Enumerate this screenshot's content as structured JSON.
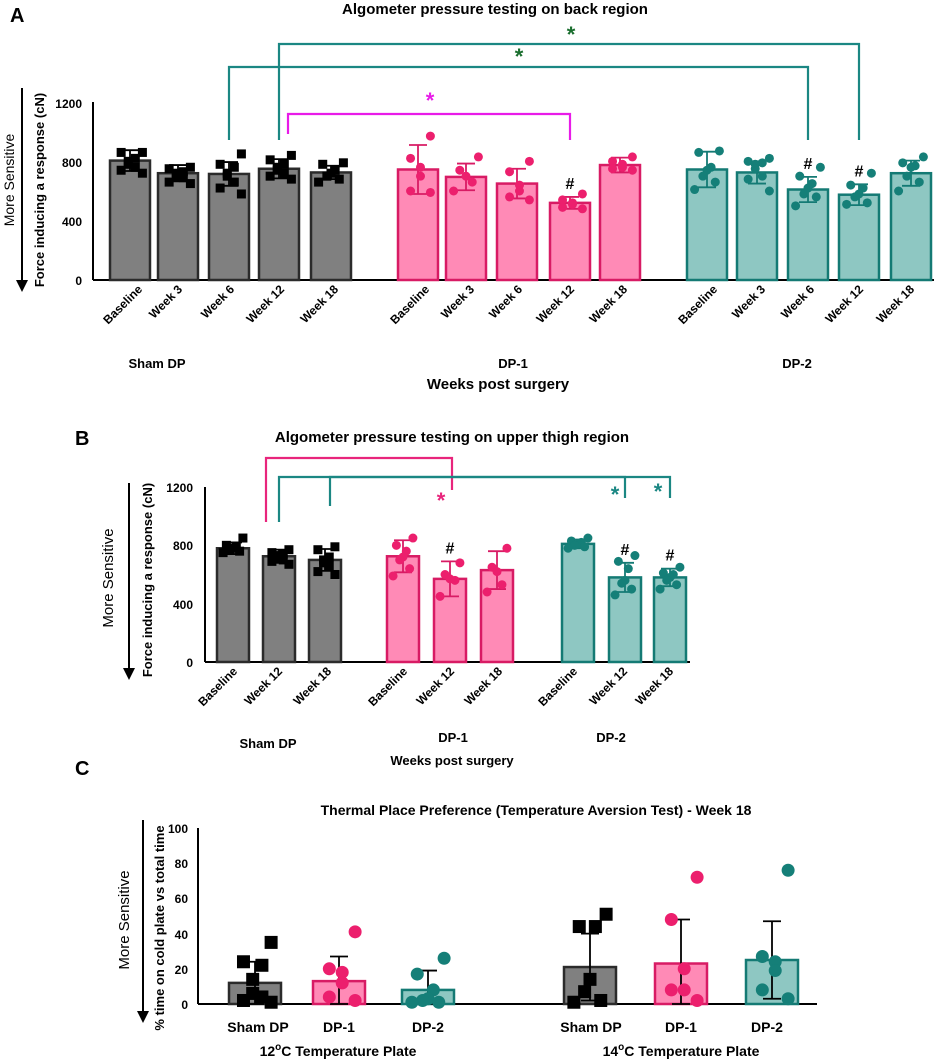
{
  "colors": {
    "sham_fill": "#808080",
    "sham_stroke": "#2b2b2b",
    "dp1_fill": "#ff8ab6",
    "dp1_stroke": "#d81b64",
    "dp1_point": "#ec1f6d",
    "dp2_fill": "#8ec7c2",
    "dp2_stroke": "#147a74",
    "dp2_point": "#157f78",
    "sig_magenta": "#e81be8",
    "sig_teal": "#1b8783",
    "sig_green": "#1a6e2e",
    "sig_pink": "#e8257c"
  },
  "chart_data": [
    {
      "panel": "A",
      "type": "bar",
      "title": "Algometer pressure testing on back region",
      "ylabel": "Force inducing a response (cN)",
      "side_label": "More Sensitive",
      "xlabel": "Weeks post surgery",
      "ylim": [
        0,
        1200
      ],
      "yticks": [
        "0",
        "400",
        "800",
        "1200"
      ],
      "groups": [
        {
          "name": "Sham DP",
          "categories": [
            "Baseline",
            "Week 3",
            "Week 6",
            "Week 12",
            "Week 18"
          ],
          "values": [
            805,
            720,
            715,
            750,
            725
          ],
          "sd": [
            70,
            55,
            80,
            65,
            45
          ],
          "points": [
            [
              860,
              860,
              820,
              800,
              780,
              760,
              740,
              720
            ],
            [
              760,
              750,
              730,
              720,
              700,
              690,
              660,
              650
            ],
            [
              850,
              780,
              760,
              720,
              700,
              660,
              620,
              580
            ],
            [
              840,
              810,
              780,
              760,
              740,
              720,
              700,
              680
            ],
            [
              790,
              780,
              740,
              720,
              700,
              680,
              660
            ]
          ]
        },
        {
          "name": "DP-1",
          "categories": [
            "Baseline",
            "Week 3",
            "Week 6",
            "Week 12",
            "Week 18"
          ],
          "values": [
            745,
            695,
            650,
            520,
            775
          ],
          "sd": [
            165,
            90,
            100,
            40,
            50
          ],
          "points": [
            [
              970,
              820,
              760,
              700,
              600,
              590
            ],
            [
              830,
              740,
              700,
              660,
              600
            ],
            [
              800,
              730,
              640,
              600,
              560,
              540
            ],
            [
              580,
              540,
              520,
              510,
              490,
              480
            ],
            [
              830,
              800,
              780,
              760,
              750,
              740
            ]
          ],
          "markers": [
            "",
            "",
            "",
            "#",
            ""
          ]
        },
        {
          "name": "DP-2",
          "categories": [
            "Baseline",
            "Week 3",
            "Week 6",
            "Week 12",
            "Week 18"
          ],
          "values": [
            745,
            725,
            610,
            575,
            720
          ],
          "sd": [
            120,
            75,
            85,
            70,
            85
          ],
          "points": [
            [
              870,
              860,
              760,
              740,
              700,
              660,
              610
            ],
            [
              820,
              800,
              790,
              780,
              750,
              700,
              680,
              600
            ],
            [
              760,
              700,
              650,
              620,
              580,
              560,
              500
            ],
            [
              720,
              640,
              620,
              580,
              560,
              520,
              510
            ],
            [
              830,
              790,
              770,
              760,
              700,
              660,
              600
            ]
          ],
          "markers": [
            "",
            "",
            "#",
            "#",
            ""
          ]
        }
      ],
      "significance": [
        {
          "from": "Sham DP / Week 12",
          "to": "DP-1 / Week 12",
          "label": "*",
          "color": "magenta"
        },
        {
          "from": "Sham DP / Week 6",
          "to": "DP-2 / Week 6",
          "label": "*",
          "color": "green"
        },
        {
          "from": "Sham DP / Week 12",
          "to": "DP-2 / Week 12",
          "label": "*",
          "color": "green"
        }
      ]
    },
    {
      "panel": "B",
      "type": "bar",
      "title": "Algometer pressure testing on upper thigh region",
      "ylabel": "Force inducing a response (cN)",
      "side_label": "More Sensitive",
      "xlabel": "Weeks post surgery",
      "ylim": [
        0,
        1200
      ],
      "yticks": [
        "0",
        "400",
        "800",
        "1200"
      ],
      "groups": [
        {
          "name": "Sham DP",
          "categories": [
            "Baseline",
            "Week 12",
            "Week 18"
          ],
          "values": [
            780,
            725,
            700
          ],
          "sd": [
            40,
            45,
            75
          ],
          "points": [
            [
              850,
              800,
              790,
              780,
              770,
              760,
              750
            ],
            [
              770,
              750,
              740,
              730,
              710,
              700,
              690,
              670
            ],
            [
              790,
              770,
              720,
              700,
              680,
              660,
              620,
              600
            ]
          ]
        },
        {
          "name": "DP-1",
          "categories": [
            "Baseline",
            "Week 12",
            "Week 18"
          ],
          "values": [
            725,
            570,
            630
          ],
          "sd": [
            110,
            120,
            130
          ],
          "points": [
            [
              850,
              800,
              760,
              720,
              700,
              640,
              590
            ],
            [
              680,
              600,
              570,
              560,
              450
            ],
            [
              780,
              650,
              620,
              530,
              480
            ]
          ],
          "markers": [
            "",
            "#",
            ""
          ]
        },
        {
          "name": "DP-2",
          "categories": [
            "Baseline",
            "Week 12",
            "Week 18"
          ],
          "values": [
            810,
            580,
            580
          ],
          "sd": [
            30,
            100,
            60
          ],
          "points": [
            [
              850,
              830,
              820,
              810,
              800,
              790,
              780
            ],
            [
              730,
              690,
              640,
              560,
              540,
              500,
              460
            ],
            [
              650,
              610,
              600,
              580,
              560,
              530,
              500
            ]
          ],
          "markers": [
            "",
            "#",
            "#"
          ]
        }
      ],
      "significance": [
        {
          "from": "Sham DP / Week 12",
          "to": "DP-1 / Week 12",
          "label": "*",
          "color": "pink"
        },
        {
          "from": "Sham DP / Week 12",
          "to": "DP-2 / Week 12",
          "label": "*",
          "color": "teal"
        },
        {
          "from": "Sham DP / Week 18",
          "to": "DP-2 / Week 18",
          "label": "*",
          "color": "teal"
        }
      ]
    },
    {
      "panel": "C",
      "type": "bar",
      "title": "Thermal Place Preference (Temperature Aversion Test)  - Week 18",
      "ylabel": "% time on cold plate vs total time",
      "side_label": "More Sensitive",
      "ylim": [
        0,
        100
      ],
      "yticks": [
        "0",
        "20",
        "40",
        "60",
        "80",
        "100"
      ],
      "groups": [
        {
          "name": "12ºC Temperature Plate",
          "categories": [
            "Sham DP",
            "DP-1",
            "DP-2"
          ],
          "values": [
            12,
            13,
            8
          ],
          "sd": [
            12,
            14,
            11
          ],
          "points": [
            [
              35,
              24,
              22,
              14,
              6,
              4,
              2,
              1
            ],
            [
              41,
              20,
              18,
              12,
              4,
              2
            ],
            [
              26,
              17,
              8,
              3,
              2,
              1,
              1
            ]
          ]
        },
        {
          "name": "14ºC Temperature Plate",
          "categories": [
            "Sham DP",
            "DP-1",
            "DP-2"
          ],
          "values": [
            21,
            23,
            25
          ],
          "sd": [
            19,
            25,
            22
          ],
          "points": [
            [
              51,
              44,
              44,
              14,
              7,
              2,
              1
            ],
            [
              72,
              48,
              20,
              8,
              8,
              2
            ],
            [
              76,
              27,
              24,
              19,
              8,
              3
            ]
          ]
        }
      ]
    }
  ],
  "panel_letters": {
    "a": "A",
    "b": "B",
    "c": "C"
  },
  "superscript_o": "o",
  "c_plate_12_prefix": "12",
  "c_plate_14_prefix": "14",
  "c_plate_suffix": "C Temperature Plate"
}
